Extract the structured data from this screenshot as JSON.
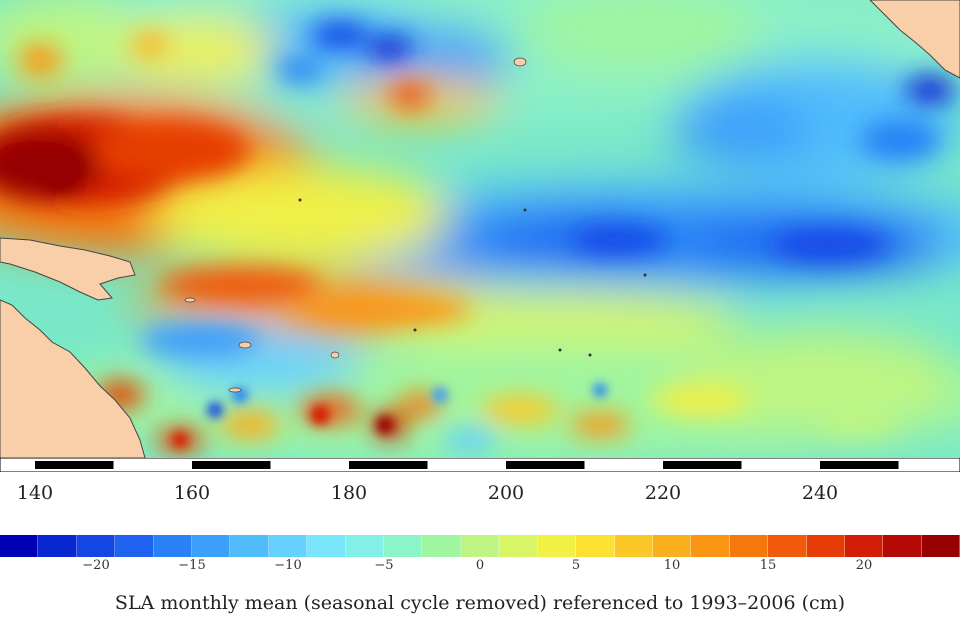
{
  "map": {
    "ocean_base_color": "#6fe0c0",
    "land_color": "#f8cfa8",
    "coast_color": "#444444"
  },
  "axis": {
    "longitude_labels": [
      "140",
      "160",
      "180",
      "200",
      "220",
      "240"
    ],
    "longitude_values": [
      140,
      160,
      180,
      200,
      220,
      240
    ]
  },
  "colorbar": {
    "colors": [
      "#0000b4",
      "#0a28d2",
      "#1446e6",
      "#1e64f0",
      "#2882f5",
      "#3ca0fa",
      "#50bcfc",
      "#64d2fc",
      "#78e6f8",
      "#82f0e6",
      "#8cf5c8",
      "#a0f5a0",
      "#bef582",
      "#d7f564",
      "#f0f046",
      "#fae132",
      "#fcc828",
      "#fcaf1e",
      "#fa9614",
      "#f5780f",
      "#f05a0a",
      "#e63c05",
      "#d21e05",
      "#b40a05",
      "#960000"
    ],
    "tick_labels": [
      "−20",
      "−15",
      "−10",
      "−5",
      "0",
      "5",
      "10",
      "15",
      "20"
    ],
    "tick_values": [
      -20,
      -15,
      -10,
      -5,
      0,
      5,
      10,
      15,
      20
    ],
    "caption": "SLA monthly mean (seasonal cycle removed) referenced to 1993–2006 (cm)"
  }
}
